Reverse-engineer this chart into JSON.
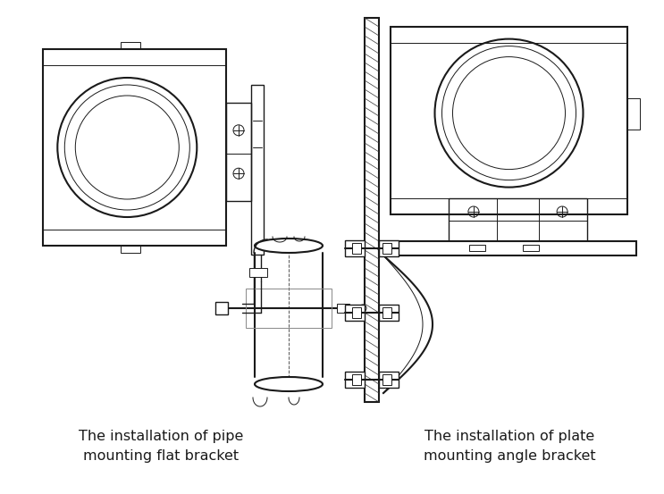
{
  "label_left_line1": "The installation of pipe",
  "label_left_line2": "mounting flat bracket",
  "label_right_line1": "The installation of plate",
  "label_right_line2": "mounting angle bracket",
  "bg_color": "#ffffff",
  "line_color": "#1a1a1a",
  "label_fontsize": 11.5,
  "figsize": [
    7.43,
    5.53
  ],
  "dpi": 100
}
